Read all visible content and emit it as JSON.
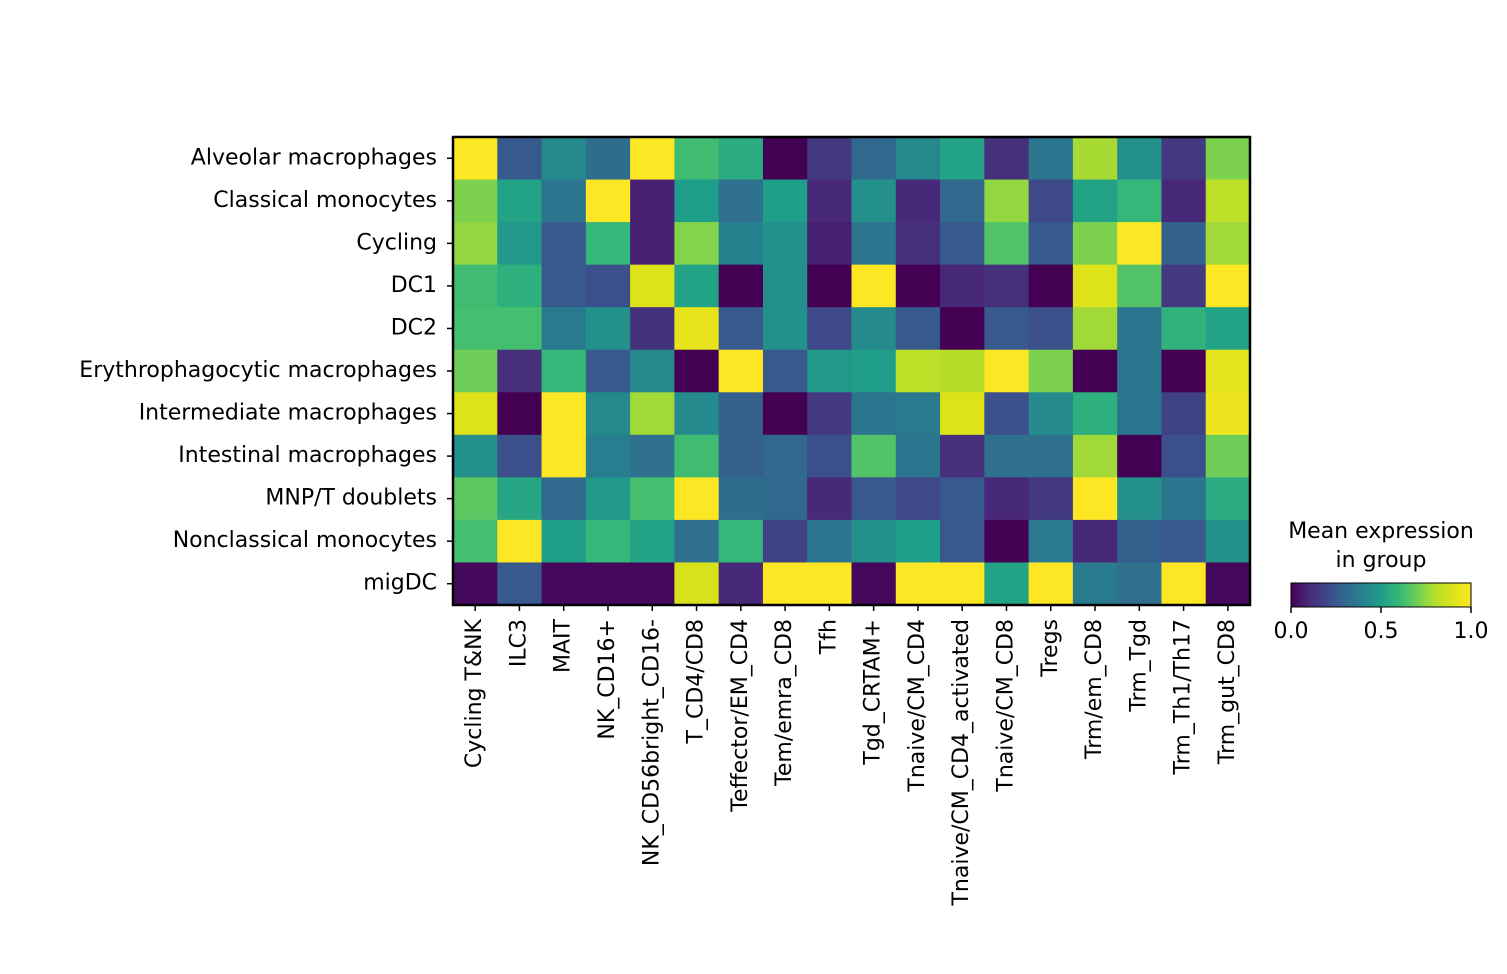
{
  "chart_data": {
    "type": "heatmap",
    "x_categories": [
      "Cycling T&NK",
      "ILC3",
      "MAIT",
      "NK_CD16+",
      "NK_CD56bright_CD16-",
      "T_CD4/CD8",
      "Teffector/EM_CD4",
      "Tem/emra_CD8",
      "Tfh",
      "Tgd_CRTAM+",
      "Tnaive/CM_CD4",
      "Tnaive/CM_CD4_activated",
      "Tnaive/CM_CD8",
      "Tregs",
      "Trm/em_CD8",
      "Trm_Tgd",
      "Trm_Th1/Th17",
      "Trm_gut_CD8"
    ],
    "y_categories": [
      "Alveolar macrophages",
      "Classical monocytes",
      "Cycling",
      "DC1",
      "DC2",
      "Erythrophagocytic macrophages",
      "Intermediate macrophages",
      "Intestinal macrophages",
      "MNP/T doublets",
      "Nonclassical monocytes",
      "migDC"
    ],
    "values": [
      [
        1.0,
        0.25,
        0.42,
        0.32,
        1.0,
        0.62,
        0.55,
        0.0,
        0.15,
        0.3,
        0.42,
        0.52,
        0.12,
        0.35,
        0.78,
        0.45,
        0.15,
        0.72
      ],
      [
        0.72,
        0.52,
        0.35,
        1.0,
        0.08,
        0.5,
        0.33,
        0.5,
        0.1,
        0.45,
        0.1,
        0.3,
        0.75,
        0.2,
        0.52,
        0.6,
        0.1,
        0.82
      ],
      [
        0.75,
        0.48,
        0.25,
        0.6,
        0.08,
        0.73,
        0.4,
        0.45,
        0.08,
        0.35,
        0.12,
        0.25,
        0.65,
        0.25,
        0.72,
        1.0,
        0.28,
        0.77
      ],
      [
        0.62,
        0.57,
        0.25,
        0.22,
        0.9,
        0.52,
        0.0,
        0.45,
        0.0,
        1.0,
        0.0,
        0.1,
        0.12,
        0.0,
        0.9,
        0.65,
        0.15,
        1.0
      ],
      [
        0.63,
        0.63,
        0.37,
        0.45,
        0.13,
        0.93,
        0.25,
        0.45,
        0.2,
        0.43,
        0.25,
        0.0,
        0.25,
        0.22,
        0.77,
        0.35,
        0.58,
        0.52
      ],
      [
        0.7,
        0.12,
        0.6,
        0.25,
        0.42,
        0.0,
        1.0,
        0.25,
        0.48,
        0.5,
        0.82,
        0.8,
        1.0,
        0.72,
        0.0,
        0.35,
        0.0,
        0.92
      ],
      [
        0.9,
        0.0,
        1.0,
        0.42,
        0.77,
        0.43,
        0.27,
        0.0,
        0.15,
        0.35,
        0.37,
        0.9,
        0.22,
        0.43,
        0.57,
        0.35,
        0.18,
        0.95
      ],
      [
        0.45,
        0.22,
        1.0,
        0.38,
        0.33,
        0.62,
        0.27,
        0.3,
        0.22,
        0.65,
        0.35,
        0.12,
        0.33,
        0.33,
        0.77,
        0.0,
        0.22,
        0.7
      ],
      [
        0.67,
        0.53,
        0.3,
        0.48,
        0.63,
        1.0,
        0.32,
        0.3,
        0.1,
        0.25,
        0.2,
        0.25,
        0.1,
        0.15,
        1.0,
        0.45,
        0.35,
        0.55
      ],
      [
        0.63,
        1.0,
        0.5,
        0.6,
        0.52,
        0.33,
        0.6,
        0.18,
        0.35,
        0.45,
        0.5,
        0.25,
        0.0,
        0.37,
        0.1,
        0.27,
        0.25,
        0.45
      ],
      [
        0.02,
        0.25,
        0.02,
        0.02,
        0.02,
        0.88,
        0.1,
        1.0,
        1.0,
        0.02,
        1.0,
        1.0,
        0.52,
        1.0,
        0.37,
        0.33,
        1.0,
        0.02
      ]
    ],
    "colormap": "viridis",
    "clim": [
      0,
      1
    ],
    "colorbar_title": [
      "Mean expression",
      "in group"
    ],
    "colorbar_ticks": [
      {
        "value": 0,
        "label": "0.0"
      },
      {
        "value": 0.5,
        "label": "0.5"
      },
      {
        "value": 1,
        "label": "1.0"
      }
    ]
  }
}
